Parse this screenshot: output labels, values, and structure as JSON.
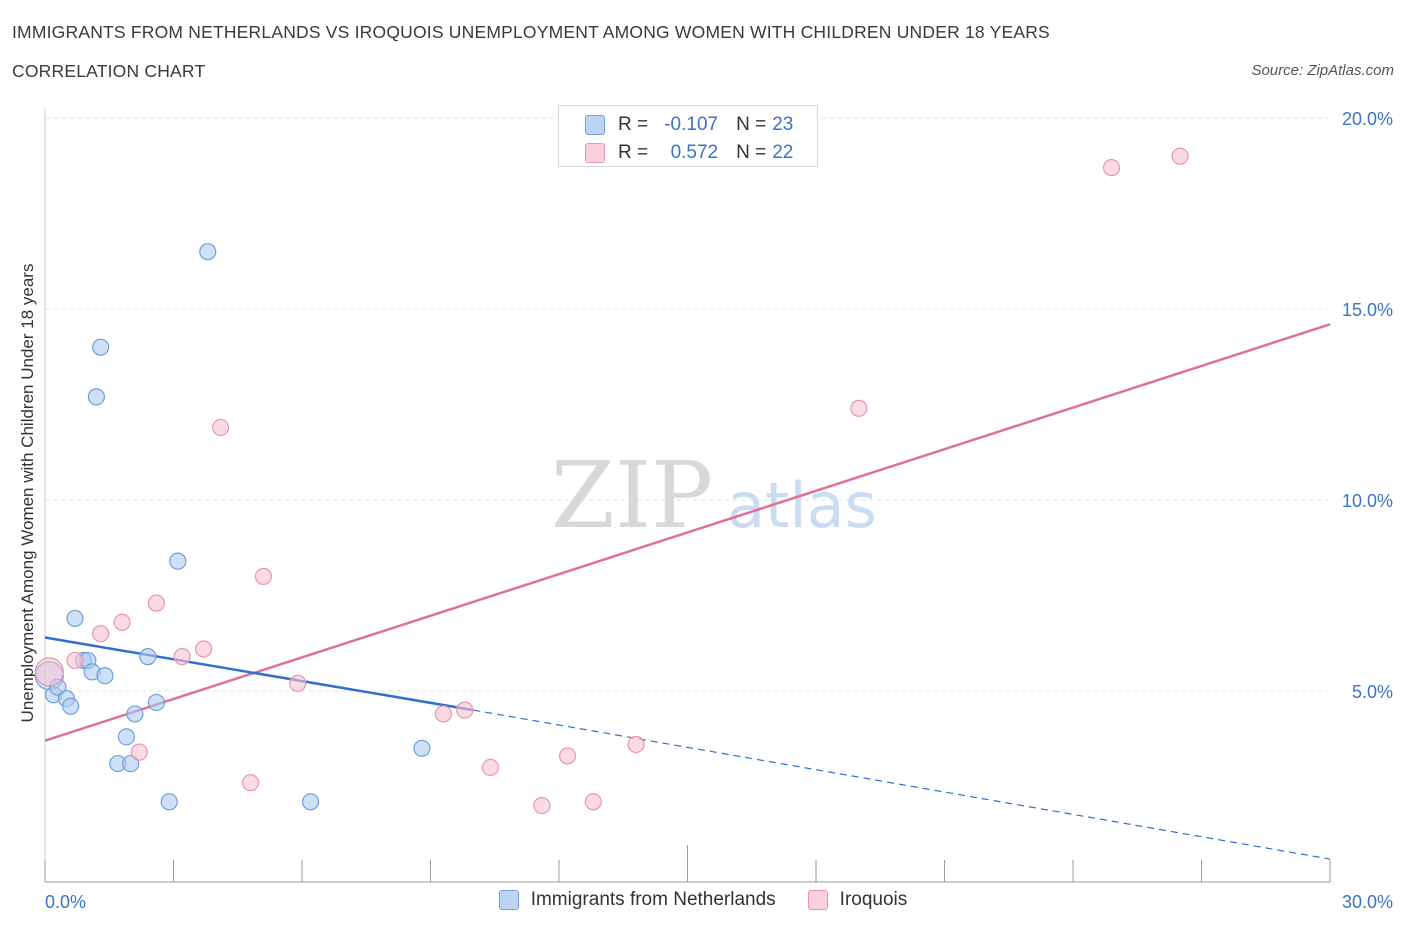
{
  "title": "IMMIGRANTS FROM NETHERLANDS VS IROQUOIS UNEMPLOYMENT AMONG WOMEN WITH CHILDREN UNDER 18 YEARS",
  "subtitle": "CORRELATION CHART",
  "source": "Source: ZipAtlas.com",
  "watermark": {
    "zip": "ZIP",
    "atlas": "atlas"
  },
  "legend": {
    "r_label": "R =",
    "n_label": "N =",
    "rows": [
      {
        "r": "-0.107",
        "n": "23"
      },
      {
        "r": "0.572",
        "n": "22"
      }
    ]
  },
  "colors": {
    "blue_fill": "#aecbf0",
    "blue_stroke": "#6f9fdc",
    "blue_line": "#2f6fd0",
    "pink_fill": "#f7c3d2",
    "pink_stroke": "#e895ad",
    "pink_line": "#e0709a",
    "tick_label": "#3a73c8",
    "grid": "#e3e3e3"
  },
  "chart_data": {
    "type": "scatter",
    "title": "IMMIGRANTS FROM NETHERLANDS VS IROQUOIS UNEMPLOYMENT AMONG WOMEN WITH CHILDREN UNDER 18 YEARS",
    "xlabel": "",
    "ylabel": "Unemployment Among Women with Children Under 18 years",
    "xlim": [
      0,
      30
    ],
    "ylim": [
      0,
      20
    ],
    "x_tick_labels": [
      "0.0%",
      "30.0%"
    ],
    "y_ticks": [
      5,
      10,
      15,
      20
    ],
    "y_tick_labels": [
      "5.0%",
      "10.0%",
      "15.0%",
      "20.0%"
    ],
    "grid": true,
    "legend_position": "bottom-center",
    "series": [
      {
        "name": "Immigrants from Netherlands",
        "color": "blue",
        "R": -0.107,
        "N": 23,
        "points": [
          [
            0.1,
            5.4
          ],
          [
            0.2,
            4.9
          ],
          [
            0.3,
            5.1
          ],
          [
            0.5,
            4.8
          ],
          [
            0.6,
            4.6
          ],
          [
            0.7,
            6.9
          ],
          [
            0.9,
            5.8
          ],
          [
            1.0,
            5.8
          ],
          [
            1.1,
            5.5
          ],
          [
            1.2,
            12.7
          ],
          [
            1.3,
            14.0
          ],
          [
            1.4,
            5.4
          ],
          [
            1.7,
            3.1
          ],
          [
            1.9,
            3.8
          ],
          [
            2.0,
            3.1
          ],
          [
            2.1,
            4.4
          ],
          [
            2.4,
            5.9
          ],
          [
            2.6,
            4.7
          ],
          [
            2.9,
            2.1
          ],
          [
            3.1,
            8.4
          ],
          [
            3.8,
            16.5
          ],
          [
            6.2,
            2.1
          ],
          [
            8.8,
            3.5
          ]
        ],
        "trend": {
          "x0": 0,
          "y0": 6.4,
          "x1": 10,
          "y1": 4.5,
          "dashed_to_x": 30,
          "dashed_to_y": 0.6
        }
      },
      {
        "name": "Iroquois",
        "color": "pink",
        "R": 0.572,
        "N": 22,
        "points": [
          [
            0.1,
            5.5
          ],
          [
            0.7,
            5.8
          ],
          [
            1.3,
            6.5
          ],
          [
            1.8,
            6.8
          ],
          [
            2.2,
            3.4
          ],
          [
            2.6,
            7.3
          ],
          [
            3.2,
            5.9
          ],
          [
            3.7,
            6.1
          ],
          [
            4.1,
            11.9
          ],
          [
            4.8,
            2.6
          ],
          [
            5.1,
            8.0
          ],
          [
            5.9,
            5.2
          ],
          [
            9.3,
            4.4
          ],
          [
            9.8,
            4.5
          ],
          [
            10.4,
            3.0
          ],
          [
            11.6,
            2.0
          ],
          [
            12.2,
            3.3
          ],
          [
            12.8,
            2.1
          ],
          [
            13.8,
            3.6
          ],
          [
            19.0,
            12.4
          ],
          [
            24.9,
            18.7
          ],
          [
            26.5,
            19.0
          ]
        ],
        "trend": {
          "x0": 0,
          "y0": 3.7,
          "x1": 30,
          "y1": 14.6
        }
      }
    ]
  }
}
